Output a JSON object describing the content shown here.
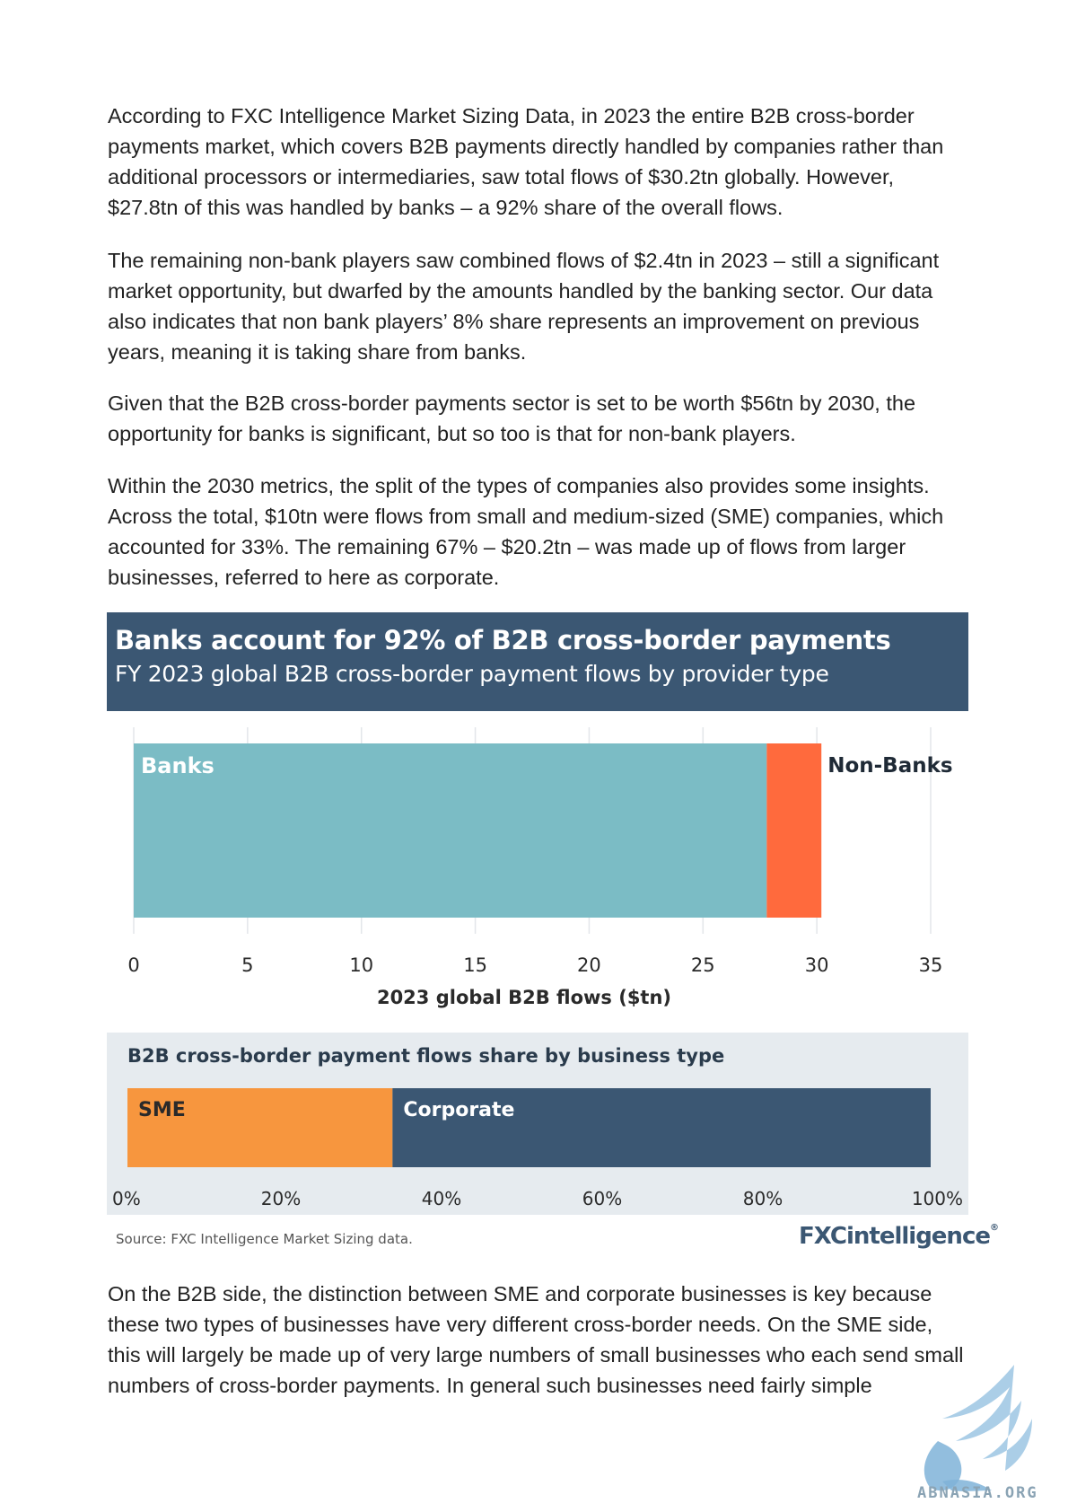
{
  "paragraphs": [
    "According to FXC Intelligence Market Sizing Data, in 2023 the entire B2B cross-border payments market, which covers B2B payments directly handled by companies rather than additional processors or intermediaries, saw total flows of $30.2tn globally. However, $27.8tn of this was handled by banks – a 92% share of the overall flows.",
    "The remaining non-bank players saw combined flows of $2.4tn in 2023 – still a significant market opportunity, but dwarfed by the amounts handled by the banking sector.  Our data also indicates that non bank players’ 8% share represents an improvement on previous years, meaning it is taking share from banks.",
    "Given that the B2B cross-border payments sector is set to be worth $56tn by 2030, the opportunity for banks is significant, but so too is that for non-bank players.",
    "Within the 2030 metrics, the split of the types of companies also provides some insights. Across the total, $10tn were flows from small and medium-sized (SME) companies, which accounted for 33%. The remaining 67% – $20.2tn – was made up of flows from larger businesses, referred to here as corporate."
  ],
  "figure": {
    "title": "Banks account for 92% of B2B cross-border payments",
    "subtitle": "FY 2023 global B2B cross-border payment flows by provider type",
    "source": "Source: FXC Intelligence Market Sizing data.",
    "logo": {
      "main": "FXC",
      "rest": "intelligence"
    }
  },
  "chart_data": [
    {
      "type": "bar",
      "orientation": "horizontal-stacked",
      "xlabel": "2023 global B2B flows ($tn)",
      "xlim": [
        0,
        35
      ],
      "xticks": [
        0,
        5,
        10,
        15,
        20,
        25,
        30,
        35
      ],
      "grid": true,
      "series": [
        {
          "name": "Banks",
          "value": 27.8,
          "color": "#7bbcc5"
        },
        {
          "name": "Non-Banks",
          "value": 2.4,
          "color": "#ff6a3d"
        }
      ]
    },
    {
      "type": "bar",
      "orientation": "horizontal-stacked",
      "title": "B2B cross-border payment flows share by business type",
      "xlim": [
        0,
        100
      ],
      "xticks": [
        "0%",
        "20%",
        "40%",
        "60%",
        "80%",
        "100%"
      ],
      "series": [
        {
          "name": "SME",
          "value": 33,
          "color": "#f7963e"
        },
        {
          "name": "Corporate",
          "value": 67,
          "color": "#3b5773"
        }
      ]
    }
  ],
  "closing_paragraph": "On the B2B side, the distinction between SME and corporate businesses is key because these two types of businesses have very different cross-border needs. On the SME side, this will largely be made up of very large numbers of small businesses who each send small numbers of cross-border payments. In general such businesses need fairly simple",
  "watermark": {
    "text": "ABNASIA.ORG"
  }
}
